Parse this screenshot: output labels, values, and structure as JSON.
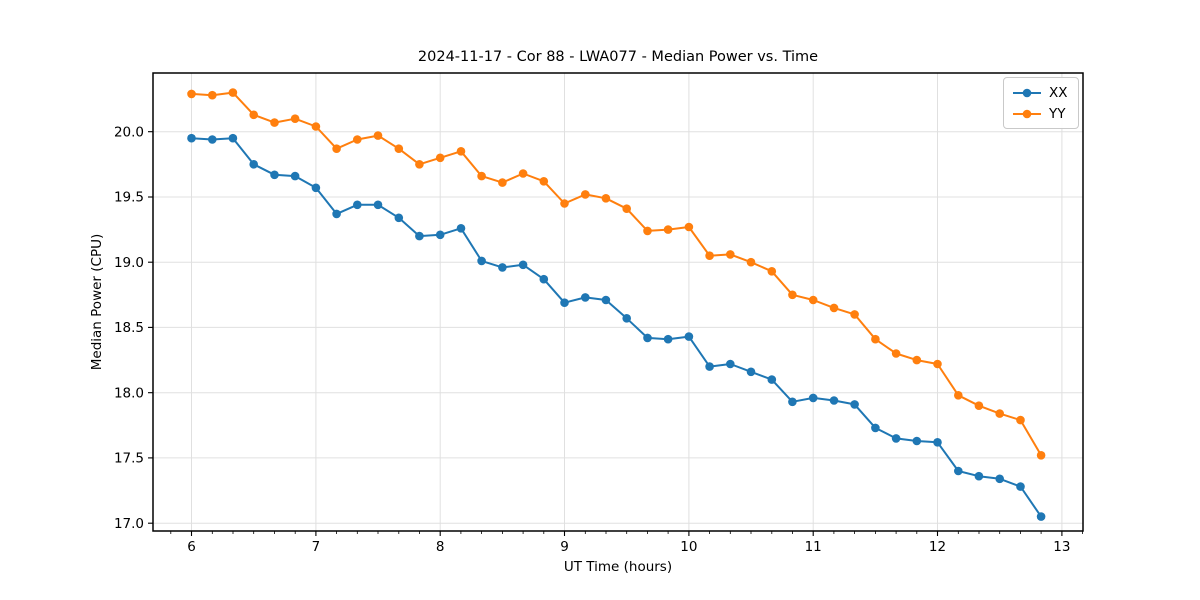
{
  "chart_data": {
    "type": "line",
    "title": "2024-11-17 - Cor 88 - LWA077 - Median Power vs. Time",
    "xlabel": "UT Time (hours)",
    "ylabel": "Median Power (CPU)",
    "xlim": [
      5.69,
      13.17
    ],
    "ylim": [
      16.94,
      20.45
    ],
    "xticks": [
      6,
      7,
      8,
      9,
      10,
      11,
      12,
      13
    ],
    "yticks": [
      17.0,
      17.5,
      18.0,
      18.5,
      19.0,
      19.5,
      20.0
    ],
    "minor_xtick_step": 0.166667,
    "grid": true,
    "legend_position": "upper right",
    "marker": "circle",
    "colors": {
      "grid": "#e0e0e0",
      "spine": "#000000",
      "text": "#000000"
    },
    "x": [
      6.0,
      6.167,
      6.333,
      6.5,
      6.667,
      6.833,
      7.0,
      7.167,
      7.333,
      7.5,
      7.667,
      7.833,
      8.0,
      8.167,
      8.333,
      8.5,
      8.667,
      8.833,
      9.0,
      9.167,
      9.333,
      9.5,
      9.667,
      9.833,
      10.0,
      10.167,
      10.333,
      10.5,
      10.667,
      10.833,
      11.0,
      11.167,
      11.333,
      11.5,
      11.667,
      11.833,
      12.0,
      12.167,
      12.333,
      12.5,
      12.667,
      12.833
    ],
    "series": [
      {
        "name": "XX",
        "color": "#1f77b4",
        "values": [
          19.95,
          19.94,
          19.95,
          19.75,
          19.67,
          19.66,
          19.57,
          19.37,
          19.44,
          19.44,
          19.34,
          19.2,
          19.21,
          19.26,
          19.01,
          18.96,
          18.98,
          18.87,
          18.69,
          18.73,
          18.71,
          18.57,
          18.42,
          18.41,
          18.43,
          18.2,
          18.22,
          18.16,
          18.1,
          17.93,
          17.96,
          17.94,
          17.91,
          17.73,
          17.65,
          17.63,
          17.62,
          17.4,
          17.36,
          17.34,
          17.28,
          17.05
        ]
      },
      {
        "name": "YY",
        "color": "#ff7f0e",
        "values": [
          20.29,
          20.28,
          20.3,
          20.13,
          20.07,
          20.1,
          20.04,
          19.87,
          19.94,
          19.97,
          19.87,
          19.75,
          19.8,
          19.85,
          19.66,
          19.61,
          19.68,
          19.62,
          19.45,
          19.52,
          19.49,
          19.41,
          19.24,
          19.25,
          19.27,
          19.05,
          19.06,
          19.0,
          18.93,
          18.75,
          18.71,
          18.65,
          18.6,
          18.41,
          18.3,
          18.25,
          18.22,
          17.98,
          17.9,
          17.84,
          17.79,
          17.52
        ]
      }
    ]
  }
}
